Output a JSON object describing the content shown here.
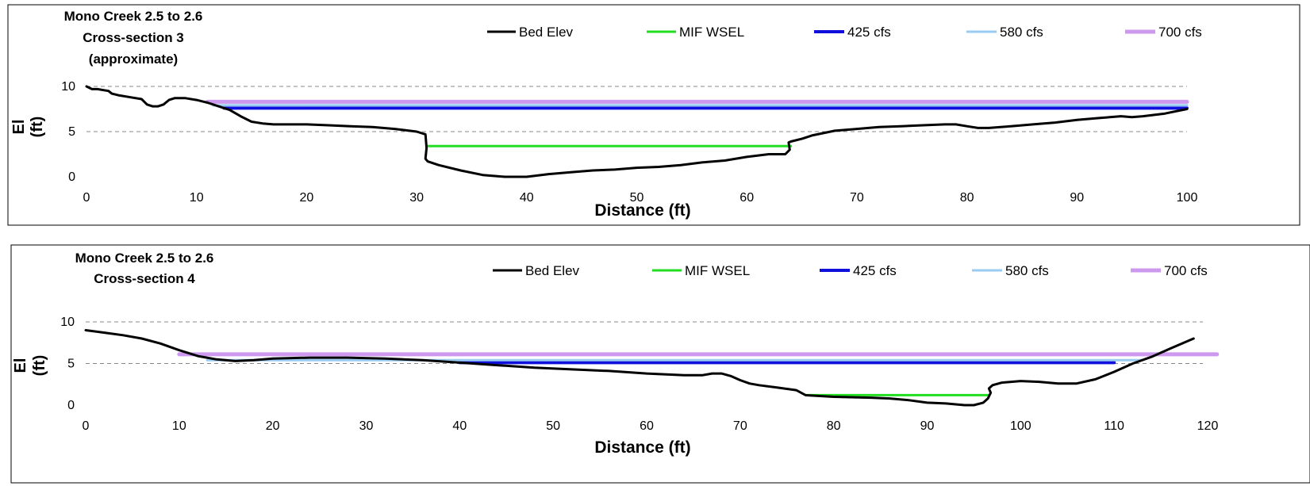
{
  "chart_data": [
    {
      "type": "line",
      "title": [
        "Mono Creek 2.5 to 2.6",
        "Cross-section 3",
        "(approximate)"
      ],
      "xlabel": "Distance  (ft)",
      "ylabel": [
        "El",
        "(ft)"
      ],
      "xlim": [
        0,
        100
      ],
      "ylim": [
        0,
        10
      ],
      "xticks": [
        0,
        10,
        20,
        30,
        40,
        50,
        60,
        70,
        80,
        90,
        100
      ],
      "yticks": [
        0,
        5,
        10
      ],
      "grid": "dashed horizontal",
      "legend_position": "top",
      "series": [
        {
          "name": "Bed Elev",
          "color": "#000000",
          "x": [
            0,
            0.5,
            1,
            2,
            2.3,
            3,
            4,
            5,
            5.5,
            6,
            6.5,
            7,
            7.5,
            8,
            9,
            10,
            11,
            12,
            13,
            14,
            15,
            16,
            17,
            18,
            20,
            22,
            24,
            26,
            28,
            30,
            30.8,
            30.9,
            30.8,
            31,
            32,
            34,
            36,
            38,
            40,
            42,
            44,
            46,
            48,
            50,
            52,
            54,
            56,
            58,
            60,
            62,
            63.5,
            63.9,
            63.8,
            64,
            65,
            66,
            68,
            70,
            72,
            74,
            76,
            78,
            79,
            80,
            81,
            82,
            84,
            86,
            88,
            90,
            92,
            94,
            95,
            96,
            98,
            100
          ],
          "y": [
            10,
            9.7,
            9.7,
            9.5,
            9.2,
            9.0,
            8.8,
            8.6,
            8.0,
            7.8,
            7.8,
            8.0,
            8.5,
            8.7,
            8.7,
            8.5,
            8.2,
            7.8,
            7.4,
            6.7,
            6.1,
            5.9,
            5.8,
            5.8,
            5.8,
            5.7,
            5.6,
            5.5,
            5.3,
            5.0,
            4.7,
            3.2,
            2.0,
            1.7,
            1.3,
            0.7,
            0.2,
            0.0,
            0.0,
            0.3,
            0.5,
            0.7,
            0.8,
            1.0,
            1.1,
            1.3,
            1.6,
            1.8,
            2.2,
            2.5,
            2.5,
            3.0,
            3.8,
            3.9,
            4.2,
            4.6,
            5.1,
            5.3,
            5.5,
            5.6,
            5.7,
            5.8,
            5.8,
            5.6,
            5.4,
            5.4,
            5.6,
            5.8,
            6.0,
            6.3,
            6.5,
            6.7,
            6.6,
            6.7,
            7.0,
            7.5
          ]
        },
        {
          "name": "MIF WSEL",
          "color": "#22dd22",
          "x": [
            31,
            64
          ],
          "y": [
            3.4,
            3.4
          ]
        },
        {
          "name": "425 cfs",
          "color": "#1010dd",
          "x": [
            12.5,
            100
          ],
          "y": [
            7.6,
            7.6
          ]
        },
        {
          "name": "580  cfs",
          "color": "#99ccf0",
          "x": [
            11.5,
            100
          ],
          "y": [
            7.9,
            7.9
          ]
        },
        {
          "name": "700 cfs",
          "color": "#cc99ee",
          "x": [
            11,
            100
          ],
          "y": [
            8.3,
            8.3
          ]
        }
      ]
    },
    {
      "type": "line",
      "title": [
        "Mono Creek 2.5 to 2.6",
        "Cross-section 4"
      ],
      "xlabel": "Distance  (ft)",
      "ylabel": [
        "El",
        "(ft)"
      ],
      "xlim": [
        0,
        120
      ],
      "ylim": [
        0,
        10
      ],
      "xticks": [
        0,
        10,
        20,
        30,
        40,
        50,
        60,
        70,
        80,
        90,
        100,
        110,
        120
      ],
      "yticks": [
        0,
        5,
        10
      ],
      "grid": "dashed horizontal",
      "legend_position": "top",
      "series": [
        {
          "name": "Bed Elev",
          "color": "#000000",
          "x": [
            0,
            2,
            4,
            6,
            8,
            10,
            12,
            14,
            16,
            18,
            20,
            24,
            28,
            32,
            36,
            40,
            44,
            48,
            52,
            56,
            60,
            64,
            66,
            67,
            68,
            69,
            70,
            71,
            72,
            74,
            76,
            77,
            80,
            84,
            86,
            88,
            90,
            92,
            94,
            95,
            96,
            96.5,
            96.8,
            96.6,
            97,
            98,
            100,
            102,
            104,
            106,
            108,
            110,
            112,
            114,
            116,
            118.5
          ],
          "y": [
            9.0,
            8.7,
            8.4,
            8.0,
            7.4,
            6.6,
            5.9,
            5.5,
            5.3,
            5.4,
            5.6,
            5.7,
            5.7,
            5.6,
            5.4,
            5.1,
            4.8,
            4.5,
            4.3,
            4.1,
            3.8,
            3.6,
            3.6,
            3.8,
            3.8,
            3.5,
            3.0,
            2.6,
            2.4,
            2.1,
            1.8,
            1.2,
            1.0,
            0.9,
            0.8,
            0.6,
            0.3,
            0.2,
            0.0,
            0.0,
            0.3,
            0.8,
            1.5,
            2.0,
            2.4,
            2.7,
            2.9,
            2.8,
            2.6,
            2.6,
            3.1,
            4.0,
            5.0,
            5.8,
            6.8,
            8.0
          ]
        },
        {
          "name": "MIF WSEL",
          "color": "#22dd22",
          "x": [
            77,
            96.5
          ],
          "y": [
            1.2,
            1.2
          ]
        },
        {
          "name": "425 cfs",
          "color": "#1010dd",
          "x": [
            40,
            110
          ],
          "y": [
            5.1,
            5.1
          ]
        },
        {
          "name": "580  cfs",
          "color": "#99ccf0",
          "x": [
            13,
            113
          ],
          "y": [
            5.4,
            5.4
          ]
        },
        {
          "name": "700 cfs",
          "color": "#cc99ee",
          "x": [
            10,
            121
          ],
          "y": [
            6.1,
            6.1
          ]
        }
      ]
    }
  ]
}
